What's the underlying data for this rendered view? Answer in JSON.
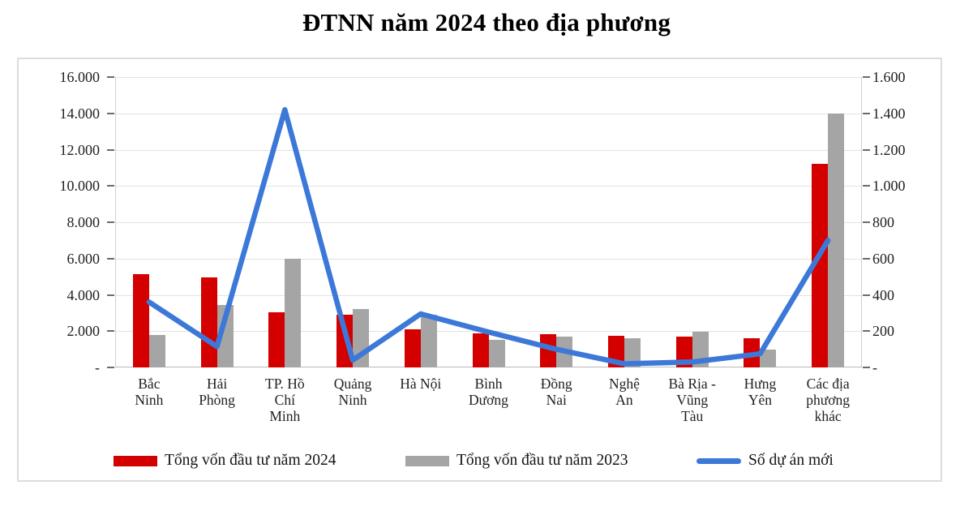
{
  "title": "ĐTNN năm 2024 theo địa phương",
  "colors": {
    "bar_2024": "#d40000",
    "bar_2023": "#a5a5a5",
    "line_new_projects": "#3c78d8",
    "gridline": "#e2e2e2",
    "axis_line": "#cfcfcf",
    "tick": "#6b6b6b",
    "text": "#1f1f1f",
    "box_border": "#dcdcdc"
  },
  "chart_data": {
    "type": "bar",
    "subtype": "combo-bar-line-dual-axis",
    "title": "ĐTNN năm 2024 theo địa phương",
    "grid": true,
    "legend_position": "bottom",
    "categories": [
      "Bắc Ninh",
      "Hải Phòng",
      "TP. Hồ Chí Minh",
      "Quảng Ninh",
      "Hà Nội",
      "Bình Dương",
      "Đồng Nai",
      "Nghệ An",
      "Bà Rịa - Vũng Tàu",
      "Hưng Yên",
      "Các địa phương khác"
    ],
    "category_label_lines": [
      [
        "Bắc",
        "Ninh"
      ],
      [
        "Hải",
        "Phòng"
      ],
      [
        "TP. Hồ",
        "Chí",
        "Minh"
      ],
      [
        "Quảng",
        "Ninh"
      ],
      [
        "Hà Nội"
      ],
      [
        "Bình",
        "Dương"
      ],
      [
        "Đồng",
        "Nai"
      ],
      [
        "Nghệ",
        "An"
      ],
      [
        "Bà Rịa -",
        "Vũng",
        "Tàu"
      ],
      [
        "Hưng",
        "Yên"
      ],
      [
        "Các địa",
        "phương",
        "khác"
      ]
    ],
    "series": [
      {
        "name": "Tổng vốn đầu tư năm  2024",
        "type": "bar",
        "axis": "left",
        "color": "#d40000",
        "values": [
          5120,
          4940,
          3040,
          2900,
          2120,
          1900,
          1850,
          1750,
          1710,
          1600,
          11200
        ]
      },
      {
        "name": "Tổng vốn đầu tư năm  2023",
        "type": "bar",
        "axis": "left",
        "color": "#a5a5a5",
        "values": [
          1800,
          3450,
          6000,
          3200,
          2900,
          1520,
          1690,
          1600,
          1950,
          1000,
          14000
        ]
      },
      {
        "name": "Số dự án mới",
        "type": "line",
        "axis": "right",
        "color": "#3c78d8",
        "values": [
          360,
          115,
          1420,
          40,
          295,
          195,
          100,
          20,
          30,
          75,
          700
        ]
      }
    ],
    "left_axis": {
      "min": 0,
      "max": 16000,
      "step": 2000,
      "tick_labels_top_to_bottom": [
        "16.000",
        "14.000",
        "12.000",
        "10.000",
        "8.000",
        "6.000",
        "4.000",
        "2.000",
        "-"
      ]
    },
    "right_axis": {
      "min": 0,
      "max": 1600,
      "step": 200,
      "tick_labels_top_to_bottom": [
        "1.600",
        "1.400",
        "1.200",
        "1.000",
        "800",
        "600",
        "400",
        "200",
        "-"
      ]
    }
  }
}
